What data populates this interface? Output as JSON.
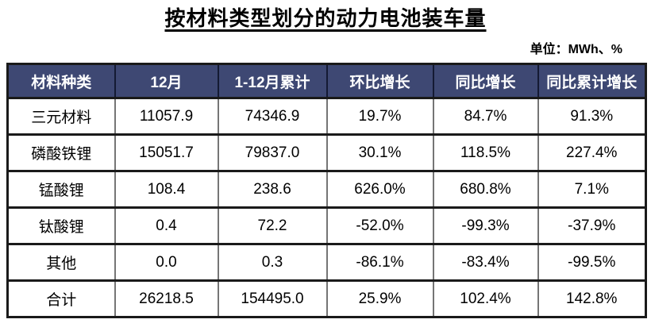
{
  "title": "按材料类型划分的动力电池装车量",
  "unit_note": "单位：MWh、%",
  "colors": {
    "header_bg": "#3E4873",
    "header_text": "#FFFFFF",
    "body_text": "#000000",
    "border_outer": "#1A1A1A",
    "border_vertical": "#757575",
    "border_horizontal": "#3C3C3C"
  },
  "table": {
    "headers": [
      "材料种类",
      "12月",
      "1-12月累计",
      "环比增长",
      "同比增长",
      "同比累计增长"
    ],
    "rows": [
      [
        "三元材料",
        "11057.9",
        "74346.9",
        "19.7%",
        "84.7%",
        "91.3%"
      ],
      [
        "磷酸铁锂",
        "15051.7",
        "79837.0",
        "30.1%",
        "118.5%",
        "227.4%"
      ],
      [
        "锰酸锂",
        "108.4",
        "238.6",
        "626.0%",
        "680.8%",
        "7.1%"
      ],
      [
        "钛酸锂",
        "0.4",
        "72.2",
        "-52.0%",
        "-99.3%",
        "-37.9%"
      ],
      [
        "其他",
        "0.0",
        "0.3",
        "-86.1%",
        "-83.4%",
        "-99.5%"
      ],
      [
        "合计",
        "26218.5",
        "154495.0",
        "25.9%",
        "102.4%",
        "142.8%"
      ]
    ]
  },
  "chart_data": {
    "type": "table",
    "title": "按材料类型划分的动力电池装车量",
    "unit": "MWh、%",
    "columns": [
      "材料种类",
      "12月",
      "1-12月累计",
      "环比增长",
      "同比增长",
      "同比累计增长"
    ],
    "rows": [
      {
        "material": "三元材料",
        "dec": 11057.9,
        "jan_dec_cumulative": 74346.9,
        "mom_growth_pct": 19.7,
        "yoy_growth_pct": 84.7,
        "yoy_cumulative_growth_pct": 91.3
      },
      {
        "material": "磷酸铁锂",
        "dec": 15051.7,
        "jan_dec_cumulative": 79837.0,
        "mom_growth_pct": 30.1,
        "yoy_growth_pct": 118.5,
        "yoy_cumulative_growth_pct": 227.4
      },
      {
        "material": "锰酸锂",
        "dec": 108.4,
        "jan_dec_cumulative": 238.6,
        "mom_growth_pct": 626.0,
        "yoy_growth_pct": 680.8,
        "yoy_cumulative_growth_pct": 7.1
      },
      {
        "material": "钛酸锂",
        "dec": 0.4,
        "jan_dec_cumulative": 72.2,
        "mom_growth_pct": -52.0,
        "yoy_growth_pct": -99.3,
        "yoy_cumulative_growth_pct": -37.9
      },
      {
        "material": "其他",
        "dec": 0.0,
        "jan_dec_cumulative": 0.3,
        "mom_growth_pct": -86.1,
        "yoy_growth_pct": -83.4,
        "yoy_cumulative_growth_pct": -99.5
      },
      {
        "material": "合计",
        "dec": 26218.5,
        "jan_dec_cumulative": 154495.0,
        "mom_growth_pct": 25.9,
        "yoy_growth_pct": 102.4,
        "yoy_cumulative_growth_pct": 142.8
      }
    ]
  }
}
